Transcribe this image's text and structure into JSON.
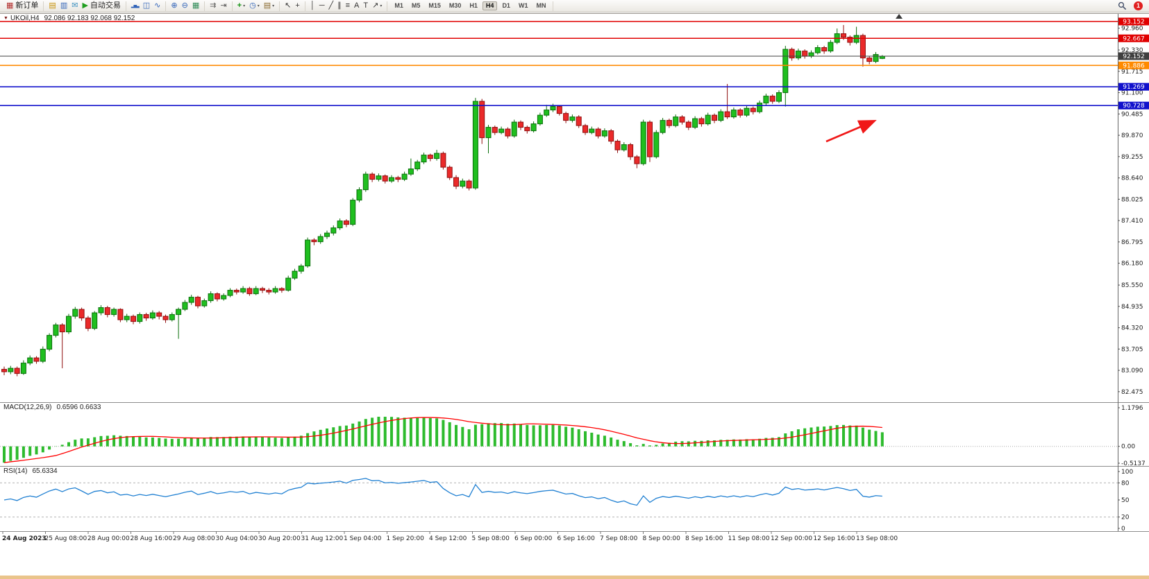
{
  "toolbar": {
    "groups": [
      {
        "name": "order",
        "items": [
          {
            "name": "new-order-button",
            "icon": "new-order-icon",
            "glyph": "▦",
            "color": "#b23030",
            "label": "新订单"
          }
        ]
      },
      {
        "name": "windows",
        "items": [
          {
            "name": "charts-icon",
            "glyph": "▤",
            "color": "#c79410"
          },
          {
            "name": "market-watch-icon",
            "glyph": "▥",
            "color": "#2f62b8"
          },
          {
            "name": "messages-icon",
            "glyph": "✉",
            "color": "#3a8fbf"
          },
          {
            "name": "auto-trading-button",
            "icon": "auto-trading-icon",
            "glyph": "▶",
            "color": "#1f9e1f",
            "label": "自动交易"
          }
        ]
      },
      {
        "name": "chart-types",
        "items": [
          {
            "name": "bar-chart-icon",
            "glyph": "▂▅▃",
            "color": "#2f62b8",
            "small": true
          },
          {
            "name": "candlestick-chart-icon",
            "glyph": "◫",
            "color": "#2f62b8"
          },
          {
            "name": "line-chart-icon",
            "glyph": "∿",
            "color": "#2f62b8"
          }
        ]
      },
      {
        "name": "zoom",
        "items": [
          {
            "name": "zoom-in-icon",
            "glyph": "⊕",
            "color": "#2f62b8"
          },
          {
            "name": "zoom-out-icon",
            "glyph": "⊖",
            "color": "#2f62b8"
          },
          {
            "name": "tile-windows-icon",
            "glyph": "▦",
            "color": "#2e8b57"
          }
        ]
      },
      {
        "name": "scroll",
        "items": [
          {
            "name": "auto-scroll-icon",
            "glyph": "⇉",
            "color": "#555555"
          },
          {
            "name": "chart-shift-icon",
            "glyph": "⇥",
            "color": "#555555"
          }
        ]
      },
      {
        "name": "insert",
        "items": [
          {
            "name": "indicators-button",
            "icon": "indicators-plus-icon",
            "glyph": "+",
            "color": "#129212",
            "caret": true
          },
          {
            "name": "periods-button",
            "icon": "clock-icon",
            "glyph": "◷",
            "color": "#2f62b8",
            "caret": true
          },
          {
            "name": "templates-button",
            "icon": "template-icon",
            "glyph": "▤",
            "color": "#8a6a30",
            "caret": true
          }
        ]
      },
      {
        "name": "pointer",
        "items": [
          {
            "name": "cursor-icon",
            "glyph": "↖",
            "color": "#333333"
          },
          {
            "name": "crosshair-icon",
            "glyph": "+",
            "color": "#333333"
          }
        ]
      },
      {
        "name": "draw",
        "items": [
          {
            "name": "vertical-line-icon",
            "glyph": "│",
            "color": "#333333"
          },
          {
            "name": "horizontal-line-icon",
            "glyph": "─",
            "color": "#333333"
          },
          {
            "name": "trendline-icon",
            "glyph": "╱",
            "color": "#333333"
          },
          {
            "name": "channel-icon",
            "glyph": "∥",
            "color": "#333333"
          },
          {
            "name": "fibonacci-icon",
            "glyph": "≡",
            "color": "#333333"
          },
          {
            "name": "text-icon",
            "glyph": "A",
            "color": "#333333"
          },
          {
            "name": "label-icon",
            "glyph": "T",
            "color": "#333333"
          },
          {
            "name": "arrows-icon",
            "glyph": "↗",
            "color": "#333333",
            "caret": true
          }
        ]
      }
    ],
    "timeframes": [
      "M1",
      "M5",
      "M15",
      "M30",
      "H1",
      "H4",
      "D1",
      "W1",
      "MN"
    ],
    "active_timeframe": "H4",
    "notification_count": "1"
  },
  "chart": {
    "symbol_label": "UKOil,H4",
    "ohlc_text": "92.086 92.183 92.068 92.152",
    "colors": {
      "up": "#1fbf1f",
      "up_border": "#0a6e0a",
      "down": "#ea2a2a",
      "down_border": "#8f0d0d"
    },
    "price_axis_ticks": [
      "92.960",
      "92.330",
      "91.715",
      "91.100",
      "90.485",
      "89.870",
      "89.255",
      "88.640",
      "88.025",
      "87.410",
      "86.795",
      "86.180",
      "85.550",
      "84.935",
      "84.320",
      "83.705",
      "83.090",
      "82.475"
    ],
    "lines": [
      {
        "label": "93.152",
        "price": 93.152,
        "color": "#e00000"
      },
      {
        "label": "92.667",
        "price": 92.667,
        "color": "#e00000"
      },
      {
        "label": "92.152",
        "price": 92.152,
        "color": "#3f3f3f",
        "bid": true
      },
      {
        "label": "91.886",
        "price": 91.886,
        "color": "#ff8a00"
      },
      {
        "label": "91.269",
        "price": 91.269,
        "color": "#1111cc"
      },
      {
        "label": "90.728",
        "price": 90.728,
        "color": "#1111cc"
      }
    ],
    "time_axis": [
      "24 Aug 2023",
      "25 Aug 08:00",
      "28 Aug 00:00",
      "28 Aug 16:00",
      "29 Aug 08:00",
      "30 Aug 04:00",
      "30 Aug 20:00",
      "31 Aug 12:00",
      "1 Sep 04:00",
      "1 Sep 20:00",
      "4 Sep 12:00",
      "5 Sep 08:00",
      "6 Sep 00:00",
      "6 Sep 16:00",
      "7 Sep 08:00",
      "8 Sep 00:00",
      "8 Sep 16:00",
      "11 Sep 08:00",
      "12 Sep 00:00",
      "12 Sep 16:00",
      "13 Sep 08:00"
    ],
    "candles_format": "open,high,low,close",
    "candles": [
      [
        83.12,
        83.2,
        82.95,
        83.05
      ],
      [
        83.05,
        83.22,
        82.98,
        83.15
      ],
      [
        83.15,
        83.2,
        82.92,
        83.0
      ],
      [
        83.0,
        83.38,
        82.96,
        83.3
      ],
      [
        83.3,
        83.52,
        83.24,
        83.45
      ],
      [
        83.45,
        83.5,
        83.28,
        83.35
      ],
      [
        83.35,
        83.78,
        83.3,
        83.7
      ],
      [
        83.7,
        84.16,
        83.64,
        84.1
      ],
      [
        84.1,
        84.46,
        84.04,
        84.4
      ],
      [
        84.4,
        84.45,
        83.15,
        84.2
      ],
      [
        84.2,
        84.72,
        84.14,
        84.65
      ],
      [
        84.65,
        84.92,
        84.58,
        84.85
      ],
      [
        84.85,
        84.9,
        84.52,
        84.6
      ],
      [
        84.6,
        84.66,
        84.22,
        84.3
      ],
      [
        84.3,
        84.8,
        84.25,
        84.75
      ],
      [
        84.75,
        84.97,
        84.68,
        84.9
      ],
      [
        84.9,
        84.95,
        84.62,
        84.7
      ],
      [
        84.7,
        84.9,
        84.64,
        84.85
      ],
      [
        84.85,
        84.88,
        84.48,
        84.55
      ],
      [
        84.55,
        84.72,
        84.48,
        84.65
      ],
      [
        84.65,
        84.7,
        84.42,
        84.5
      ],
      [
        84.5,
        84.76,
        84.44,
        84.7
      ],
      [
        84.7,
        84.75,
        84.52,
        84.6
      ],
      [
        84.6,
        84.82,
        84.55,
        84.75
      ],
      [
        84.75,
        84.8,
        84.56,
        84.65
      ],
      [
        84.65,
        84.7,
        84.46,
        84.55
      ],
      [
        84.55,
        84.76,
        84.5,
        84.7
      ],
      [
        84.7,
        84.9,
        84.0,
        84.85
      ],
      [
        84.85,
        85.12,
        84.8,
        85.05
      ],
      [
        85.05,
        85.27,
        84.98,
        85.2
      ],
      [
        85.2,
        85.24,
        84.88,
        84.95
      ],
      [
        84.95,
        85.16,
        84.9,
        85.1
      ],
      [
        85.1,
        85.37,
        85.04,
        85.3
      ],
      [
        85.3,
        85.34,
        85.08,
        85.15
      ],
      [
        85.15,
        85.31,
        85.1,
        85.25
      ],
      [
        85.25,
        85.46,
        85.2,
        85.4
      ],
      [
        85.4,
        85.45,
        85.28,
        85.35
      ],
      [
        85.35,
        85.52,
        85.3,
        85.45
      ],
      [
        85.45,
        85.5,
        85.24,
        85.3
      ],
      [
        85.3,
        85.52,
        85.26,
        85.45
      ],
      [
        85.45,
        85.5,
        85.32,
        85.4
      ],
      [
        85.4,
        85.46,
        85.28,
        85.35
      ],
      [
        85.35,
        85.52,
        85.3,
        85.45
      ],
      [
        85.45,
        85.49,
        85.33,
        85.4
      ],
      [
        85.4,
        85.82,
        85.36,
        85.75
      ],
      [
        85.75,
        86.02,
        85.7,
        85.95
      ],
      [
        85.95,
        86.16,
        85.88,
        86.1
      ],
      [
        86.1,
        86.92,
        86.05,
        86.85
      ],
      [
        86.85,
        86.9,
        86.7,
        86.8
      ],
      [
        86.8,
        87.02,
        86.74,
        86.95
      ],
      [
        86.95,
        87.12,
        86.88,
        87.05
      ],
      [
        87.05,
        87.27,
        86.98,
        87.2
      ],
      [
        87.2,
        87.47,
        87.14,
        87.4
      ],
      [
        87.4,
        87.45,
        87.22,
        87.3
      ],
      [
        87.3,
        88.06,
        87.25,
        88.0
      ],
      [
        88.0,
        88.37,
        87.94,
        88.3
      ],
      [
        88.3,
        88.82,
        88.24,
        88.75
      ],
      [
        88.75,
        88.8,
        88.52,
        88.6
      ],
      [
        88.6,
        88.77,
        88.54,
        88.7
      ],
      [
        88.7,
        88.74,
        88.48,
        88.55
      ],
      [
        88.55,
        88.72,
        88.5,
        88.65
      ],
      [
        88.65,
        88.7,
        88.52,
        88.6
      ],
      [
        88.6,
        88.82,
        88.55,
        88.75
      ],
      [
        88.75,
        89.2,
        88.7,
        88.9
      ],
      [
        88.9,
        89.16,
        88.84,
        89.1
      ],
      [
        89.1,
        89.37,
        89.04,
        89.3
      ],
      [
        89.3,
        89.34,
        89.12,
        89.2
      ],
      [
        89.2,
        89.45,
        89.14,
        89.35
      ],
      [
        89.35,
        89.4,
        88.88,
        88.95
      ],
      [
        88.95,
        89.0,
        88.58,
        88.65
      ],
      [
        88.65,
        88.72,
        88.32,
        88.4
      ],
      [
        88.4,
        88.62,
        88.34,
        88.55
      ],
      [
        88.55,
        88.6,
        88.28,
        88.35
      ],
      [
        88.35,
        90.95,
        88.3,
        90.85
      ],
      [
        90.85,
        90.92,
        89.62,
        89.8
      ],
      [
        89.8,
        90.17,
        89.35,
        90.1
      ],
      [
        90.1,
        90.15,
        89.88,
        89.95
      ],
      [
        89.95,
        90.12,
        89.9,
        90.05
      ],
      [
        90.05,
        90.1,
        89.78,
        89.85
      ],
      [
        89.85,
        90.32,
        89.8,
        90.25
      ],
      [
        90.25,
        90.3,
        90.02,
        90.1
      ],
      [
        90.1,
        90.15,
        89.92,
        90.0
      ],
      [
        90.0,
        90.27,
        89.95,
        90.2
      ],
      [
        90.2,
        90.52,
        90.15,
        90.45
      ],
      [
        90.45,
        90.75,
        90.4,
        90.6
      ],
      [
        90.6,
        90.78,
        90.54,
        90.7
      ],
      [
        90.7,
        90.74,
        90.44,
        90.5
      ],
      [
        90.5,
        90.55,
        90.22,
        90.3
      ],
      [
        90.3,
        90.47,
        90.24,
        90.4
      ],
      [
        90.4,
        90.45,
        90.08,
        90.15
      ],
      [
        90.15,
        90.2,
        89.88,
        89.95
      ],
      [
        89.95,
        90.12,
        89.9,
        90.05
      ],
      [
        90.05,
        90.1,
        89.78,
        89.85
      ],
      [
        89.85,
        90.07,
        89.8,
        90.0
      ],
      [
        90.0,
        90.05,
        89.62,
        89.7
      ],
      [
        89.7,
        89.75,
        89.36,
        89.45
      ],
      [
        89.45,
        89.67,
        89.4,
        89.6
      ],
      [
        89.6,
        89.65,
        89.16,
        89.25
      ],
      [
        89.25,
        89.3,
        88.92,
        89.05
      ],
      [
        89.05,
        90.32,
        89.0,
        90.25
      ],
      [
        90.25,
        90.3,
        89.1,
        89.25
      ],
      [
        89.25,
        90.02,
        89.2,
        89.95
      ],
      [
        89.95,
        90.37,
        89.9,
        90.3
      ],
      [
        90.3,
        90.35,
        90.08,
        90.15
      ],
      [
        90.15,
        90.47,
        90.1,
        90.4
      ],
      [
        90.4,
        90.45,
        90.18,
        90.25
      ],
      [
        90.25,
        90.3,
        90.02,
        90.1
      ],
      [
        90.1,
        90.42,
        90.05,
        90.35
      ],
      [
        90.35,
        90.4,
        90.12,
        90.2
      ],
      [
        90.2,
        90.52,
        90.15,
        90.45
      ],
      [
        90.45,
        90.5,
        90.22,
        90.3
      ],
      [
        90.3,
        90.62,
        90.25,
        90.55
      ],
      [
        90.55,
        91.35,
        90.34,
        90.4
      ],
      [
        90.4,
        90.67,
        90.35,
        90.6
      ],
      [
        90.6,
        90.65,
        90.38,
        90.45
      ],
      [
        90.45,
        90.72,
        90.4,
        90.65
      ],
      [
        90.65,
        90.7,
        90.47,
        90.55
      ],
      [
        90.55,
        90.87,
        90.5,
        90.8
      ],
      [
        90.8,
        91.07,
        90.74,
        91.0
      ],
      [
        91.0,
        91.05,
        90.78,
        90.85
      ],
      [
        90.85,
        91.17,
        90.8,
        91.1
      ],
      [
        91.1,
        92.45,
        90.7,
        92.35
      ],
      [
        92.35,
        92.4,
        92.02,
        92.1
      ],
      [
        92.1,
        92.37,
        92.04,
        92.3
      ],
      [
        92.3,
        92.35,
        92.08,
        92.15
      ],
      [
        92.15,
        92.32,
        92.1,
        92.25
      ],
      [
        92.25,
        92.47,
        92.2,
        92.4
      ],
      [
        92.4,
        92.45,
        92.22,
        92.3
      ],
      [
        92.3,
        92.62,
        92.25,
        92.55
      ],
      [
        92.55,
        92.95,
        92.5,
        92.8
      ],
      [
        92.8,
        93.05,
        92.62,
        92.7
      ],
      [
        92.7,
        92.75,
        92.46,
        92.55
      ],
      [
        92.55,
        93.0,
        92.5,
        92.75
      ],
      [
        92.75,
        92.8,
        91.85,
        92.1
      ],
      [
        92.1,
        92.15,
        91.92,
        92.0
      ],
      [
        92.0,
        92.27,
        91.95,
        92.2
      ],
      [
        92.086,
        92.183,
        92.068,
        92.152
      ]
    ]
  },
  "macd": {
    "label": "MACD(12,26,9)",
    "values": "0.6596 0.6633",
    "scale": [
      "1.1796",
      "0.00",
      "-0.5137"
    ],
    "hist_color": "#2dbb2d",
    "signal_color": "#ff0000"
  },
  "rsi": {
    "label": "RSI(14)",
    "value": "65.6334",
    "scale": [
      "100",
      "80",
      "50",
      "20",
      "0"
    ],
    "line_color": "#1e7fd2"
  },
  "annotation": {
    "type": "arrow",
    "color": "#f01818"
  }
}
